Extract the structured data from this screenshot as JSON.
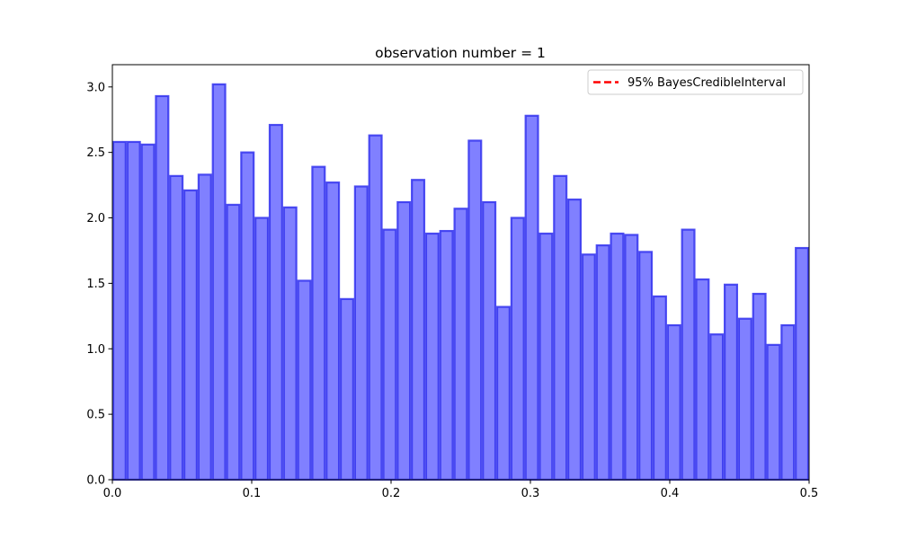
{
  "chart_data": {
    "type": "bar",
    "title": "observation number = 1",
    "xlabel": "",
    "ylabel": "",
    "xlim": [
      0.0,
      0.5
    ],
    "ylim": [
      0.0,
      3.17
    ],
    "bin_width": 0.01,
    "x_ticks": [
      "0.0",
      "0.1",
      "0.2",
      "0.3",
      "0.4",
      "0.5"
    ],
    "y_ticks": [
      "0.0",
      "0.5",
      "1.0",
      "1.5",
      "2.0",
      "2.5",
      "3.0"
    ],
    "grid": false,
    "legend": {
      "placement": "upper-right",
      "entries": [
        {
          "label": "95% BayesCredibleInterval",
          "color": "#ff0000",
          "style": "dashed"
        }
      ]
    },
    "bar_fill_color": "#8080ff",
    "bar_edge_color": "#3333ee",
    "values": [
      2.58,
      2.58,
      2.56,
      2.93,
      2.32,
      2.21,
      2.33,
      3.02,
      2.1,
      2.5,
      2.0,
      2.71,
      2.08,
      1.52,
      2.39,
      2.27,
      1.38,
      2.24,
      2.63,
      1.91,
      2.12,
      2.29,
      1.88,
      1.9,
      2.07,
      2.59,
      2.12,
      1.32,
      2.0,
      2.78,
      1.88,
      2.32,
      2.14,
      1.72,
      1.79,
      1.88,
      1.87,
      1.74,
      1.4,
      1.18,
      1.91,
      1.53,
      1.11,
      1.49,
      1.23,
      1.42,
      1.03,
      1.18,
      1.77
    ]
  }
}
